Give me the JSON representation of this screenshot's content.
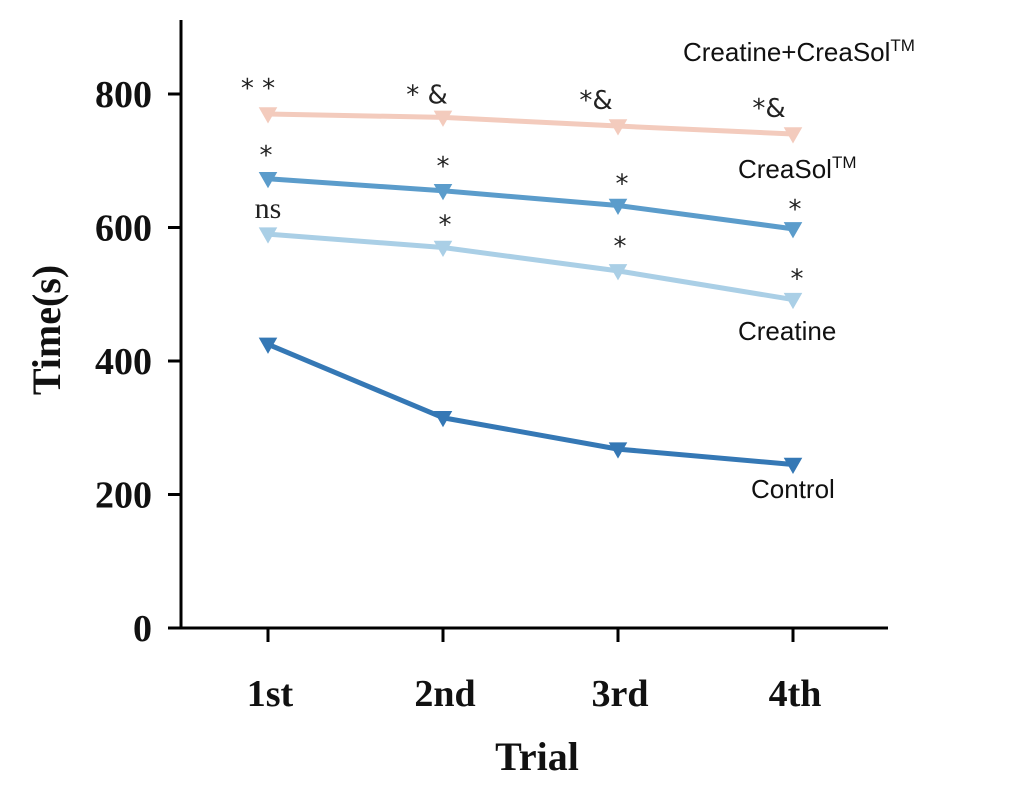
{
  "chart_data": {
    "type": "line",
    "xlabel": "Trial",
    "ylabel": "Time(s)",
    "ylim": [
      0,
      900
    ],
    "yticks": [
      0,
      200,
      400,
      600,
      800
    ],
    "categories": [
      "1st",
      "2nd",
      "3rd",
      "4th"
    ],
    "grid": false,
    "series": [
      {
        "name": "Creatine+CreaSol",
        "name_superscript": "TM",
        "color": "#f3cbbd",
        "values": [
          770,
          765,
          752,
          740
        ],
        "annotations": [
          "* *",
          "* &",
          "*&",
          "*&"
        ]
      },
      {
        "name": "CreaSol",
        "name_superscript": "TM",
        "color": "#5b9ccb",
        "values": [
          673,
          655,
          633,
          598
        ],
        "annotations": [
          "*",
          "*",
          "*",
          "*"
        ]
      },
      {
        "name": "Creatine",
        "name_superscript": "",
        "color": "#aacfe6",
        "values": [
          590,
          570,
          535,
          492
        ],
        "annotations": [
          "ns",
          "*",
          "*",
          "*"
        ]
      },
      {
        "name": "Control",
        "name_superscript": "",
        "color": "#3578b5",
        "values": [
          425,
          315,
          268,
          245
        ],
        "annotations": [
          "",
          "",
          "",
          ""
        ]
      }
    ]
  }
}
